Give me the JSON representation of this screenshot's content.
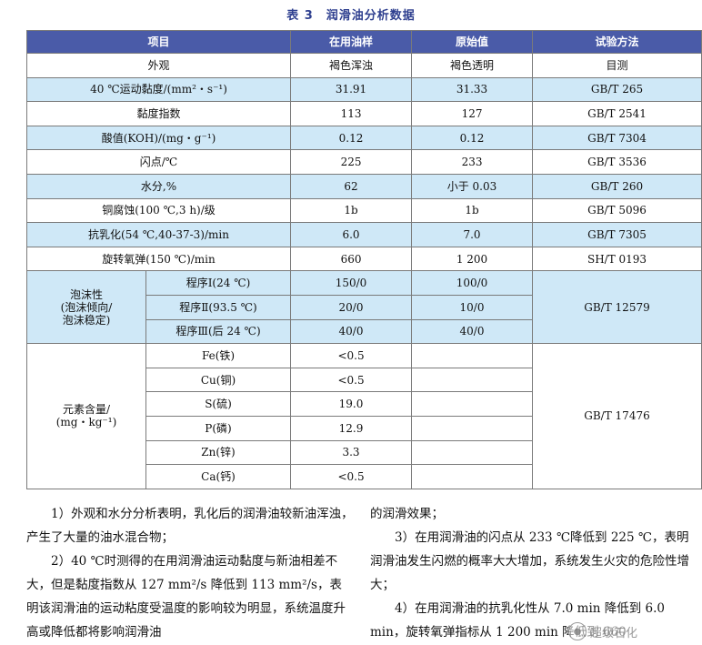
{
  "caption": "表 3　润滑油分析数据",
  "header": [
    "项目",
    "在用油样",
    "原始值",
    "试验方法"
  ],
  "rows": [
    {
      "item": "外观",
      "used": "褐色浑浊",
      "orig": "褐色透明",
      "method": "目测"
    },
    {
      "item": "40 ℃运动黏度/(mm²・s⁻¹)",
      "used": "31.91",
      "orig": "31.33",
      "method": "GB/T 265"
    },
    {
      "item": "黏度指数",
      "used": "113",
      "orig": "127",
      "method": "GB/T 2541"
    },
    {
      "item": "酸值(KOH)/(mg・g⁻¹)",
      "used": "0.12",
      "orig": "0.12",
      "method": "GB/T 7304"
    },
    {
      "item": "闪点/℃",
      "used": "225",
      "orig": "233",
      "method": "GB/T 3536"
    },
    {
      "item": "水分,%",
      "used": "62",
      "orig": "小于 0.03",
      "method": "GB/T 260"
    },
    {
      "item": "铜腐蚀(100 ℃,3 h)/级",
      "used": "1b",
      "orig": "1b",
      "method": "GB/T 5096"
    },
    {
      "item": "抗乳化(54 ℃,40-37-3)/min",
      "used": "6.0",
      "orig": "7.0",
      "method": "GB/T 7305"
    },
    {
      "item": "旋转氧弹(150 ℃)/min",
      "used": "660",
      "orig": "1 200",
      "method": "SH/T 0193"
    }
  ],
  "foam": {
    "label_lines": [
      "泡沫性",
      "(泡沫倾向/",
      "泡沫稳定)"
    ],
    "method": "GB/T 12579",
    "rows": [
      {
        "sub": "程序Ⅰ(24 ℃)",
        "used": "150/0",
        "orig": "100/0"
      },
      {
        "sub": "程序Ⅱ(93.5 ℃)",
        "used": "20/0",
        "orig": "10/0"
      },
      {
        "sub": "程序Ⅲ(后 24 ℃)",
        "used": "40/0",
        "orig": "40/0"
      }
    ]
  },
  "elements": {
    "label_lines": [
      "元素含量/",
      "(mg・kg⁻¹)"
    ],
    "method": "GB/T 17476",
    "rows": [
      {
        "sub": "Fe(铁)",
        "used": "<0.5",
        "orig": ""
      },
      {
        "sub": "Cu(铜)",
        "used": "<0.5",
        "orig": ""
      },
      {
        "sub": "S(硫)",
        "used": "19.0",
        "orig": ""
      },
      {
        "sub": "P(磷)",
        "used": "12.9",
        "orig": ""
      },
      {
        "sub": "Zn(锌)",
        "used": "3.3",
        "orig": ""
      },
      {
        "sub": "Ca(钙)",
        "used": "<0.5",
        "orig": ""
      }
    ]
  },
  "text": {
    "left": [
      "1）外观和水分分析表明，乳化后的润滑油较新油浑浊，产生了大量的油水混合物；",
      "2）40 ℃时测得的在用润滑油运动黏度与新油相差不大，但是黏度指数从 127 mm²/s 降低到 113 mm²/s，表明该润滑油的运动粘度受温度的影响较为明显，系统温度升高或降低都将影响润滑油"
    ],
    "right": [
      "的润滑效果；",
      "3）在用润滑油的闪点从 233 ℃降低到 225 ℃，表明润滑油发生闪燃的概率大大增加，系统发生火灾的危险性增大；",
      "4）在用润滑油的抗乳化性从 7.0 min 降低到 6.0 min，旋转氧弹指标从 1 200 min 降低到 660"
    ]
  },
  "watermark": {
    "text": "超级石化",
    "icon": "wechat-icon"
  }
}
